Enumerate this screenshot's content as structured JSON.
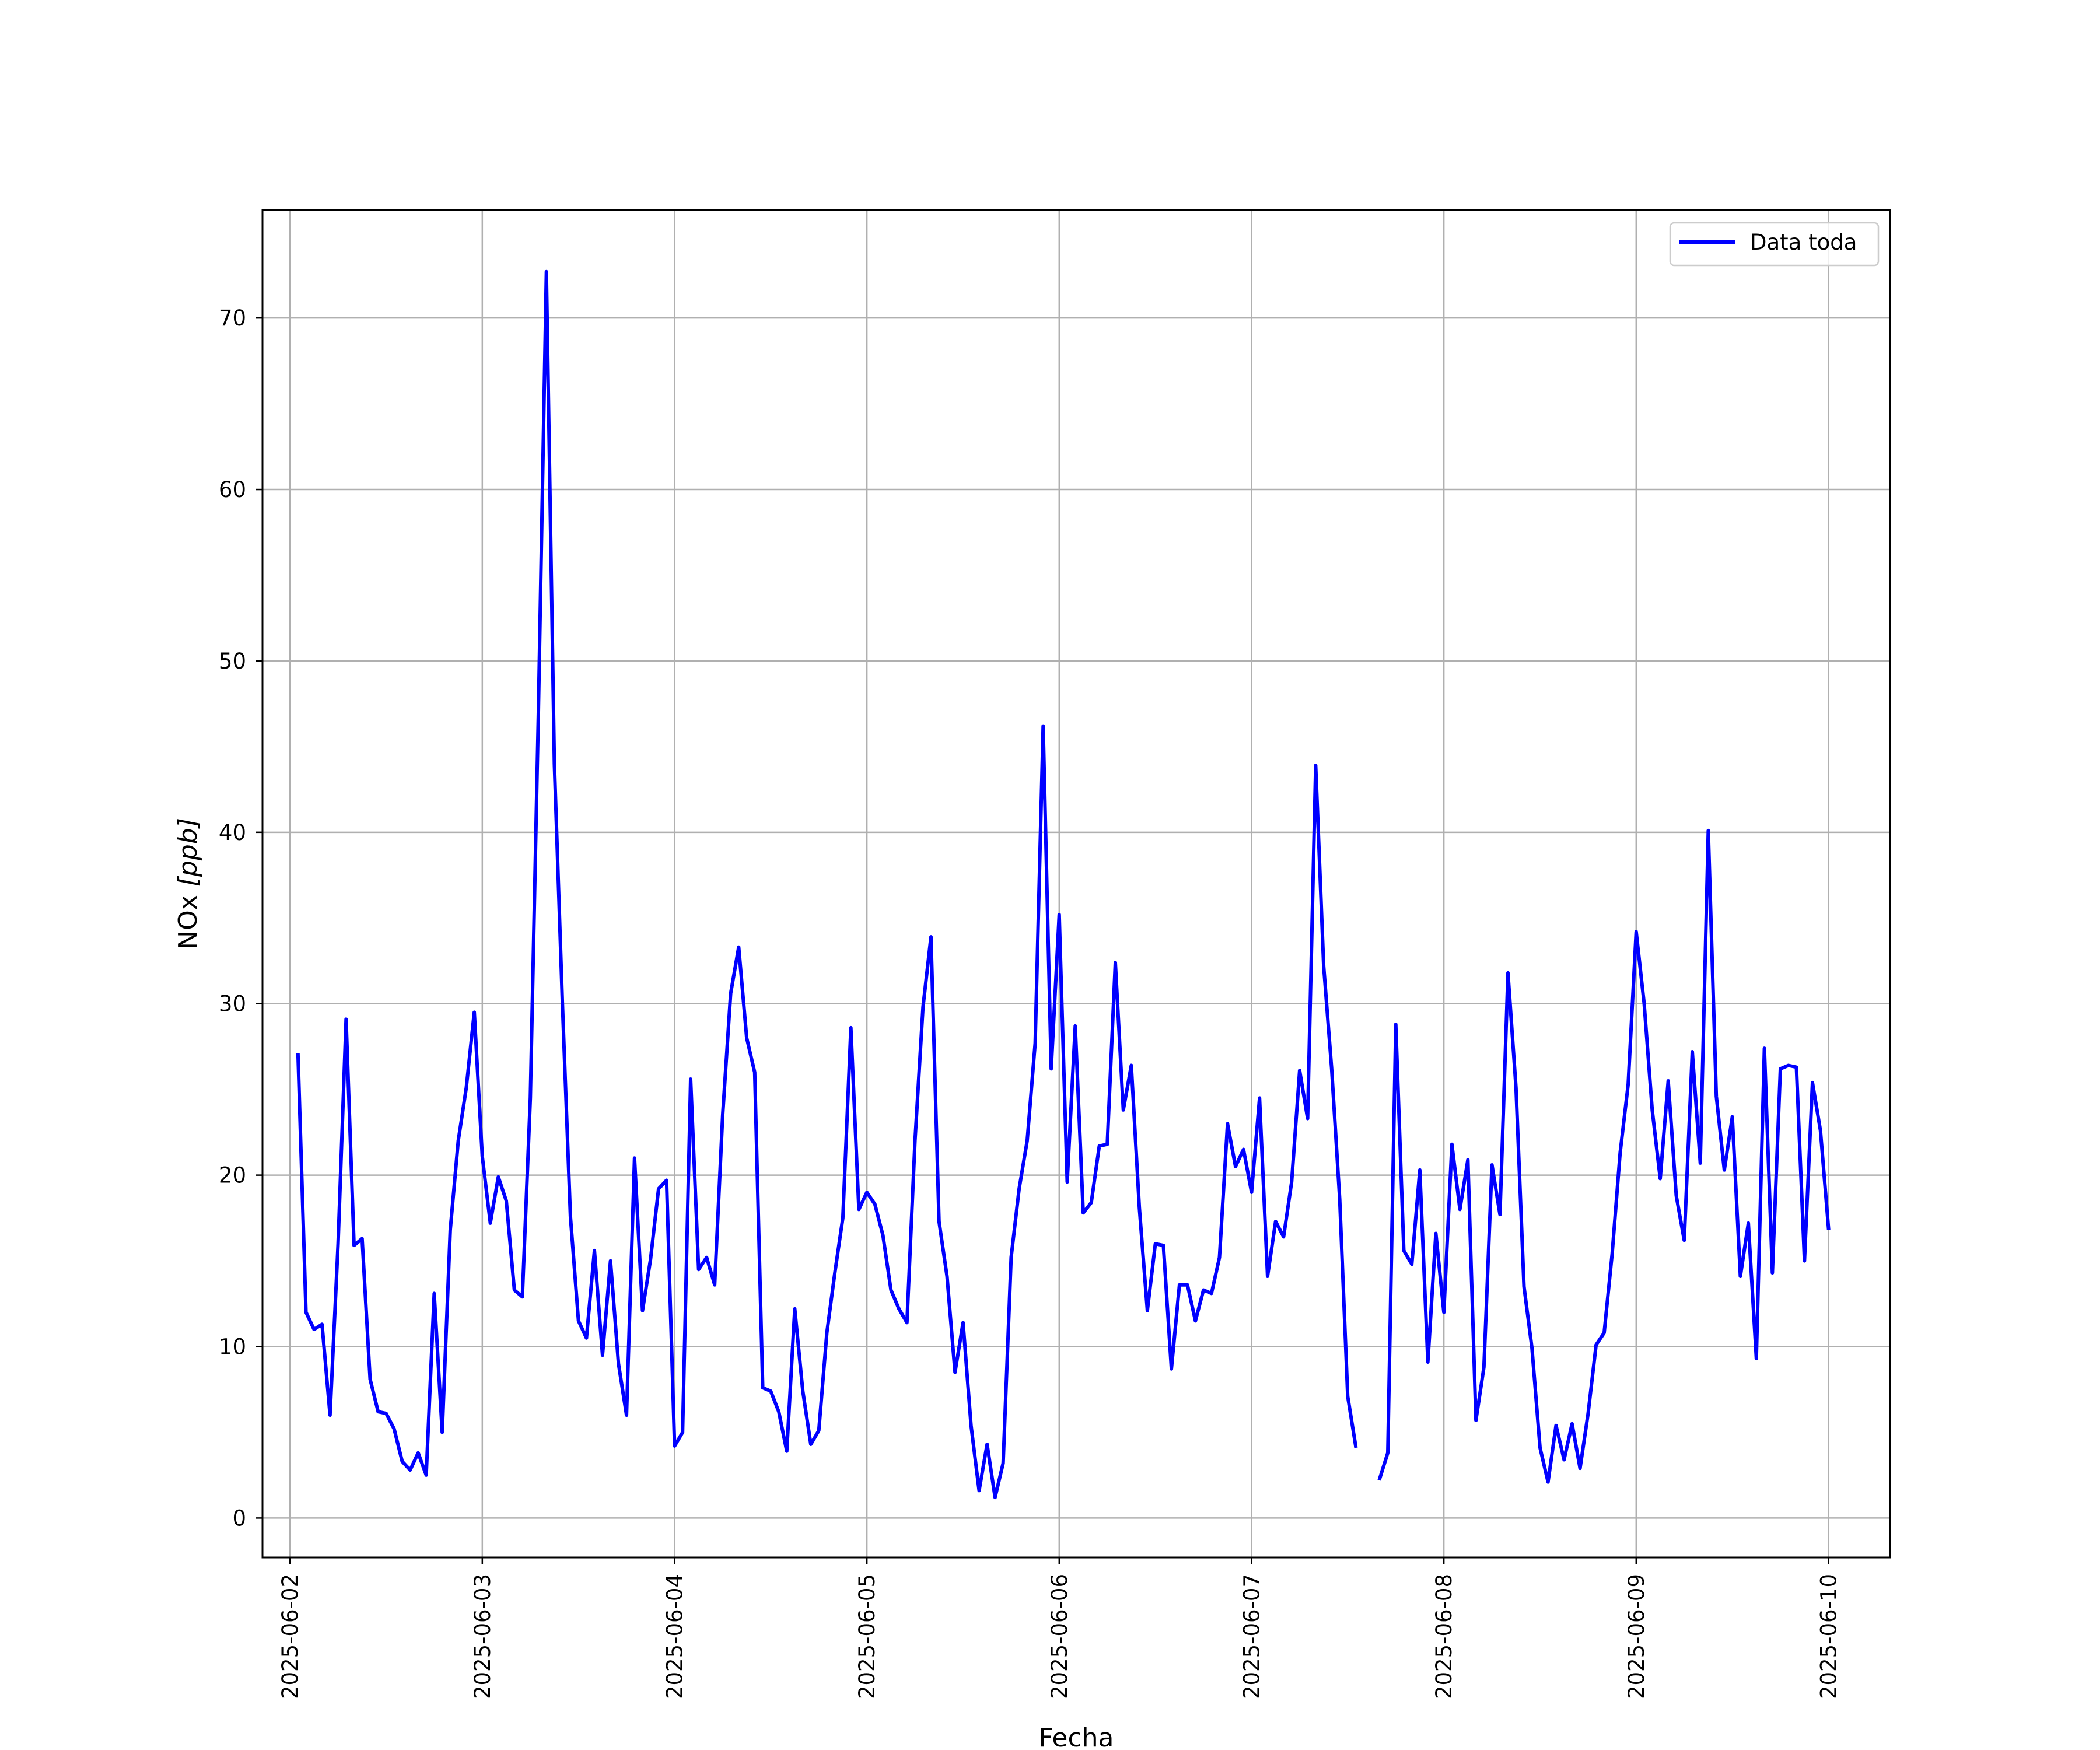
{
  "chart_data": {
    "type": "line",
    "title": "",
    "xlabel": "Fecha",
    "ylabel": "NOx [ppb]",
    "ylabel_parts": {
      "main": "NOx ",
      "italic": "[ppb]"
    },
    "xlim": [
      "2025-06-01T20:34",
      "2025-06-10T07:41"
    ],
    "ylim": [
      -2.3,
      76.3
    ],
    "grid": true,
    "legend_position": "top-right",
    "x_ticks": [
      "2025-06-02",
      "2025-06-03",
      "2025-06-04",
      "2025-06-05",
      "2025-06-06",
      "2025-06-07",
      "2025-06-08",
      "2025-06-09",
      "2025-06-10"
    ],
    "y_ticks": [
      "0",
      "10",
      "20",
      "30",
      "40",
      "50",
      "60",
      "70"
    ],
    "series": [
      {
        "name": "Data toda",
        "color": "#0000ff",
        "points": [
          [
            "2025-06-02T01:00",
            27.0
          ],
          [
            "2025-06-02T02:00",
            12.0
          ],
          [
            "2025-06-02T03:00",
            11.0
          ],
          [
            "2025-06-02T04:00",
            11.3
          ],
          [
            "2025-06-02T05:00",
            6.0
          ],
          [
            "2025-06-02T06:00",
            16.0
          ],
          [
            "2025-06-02T07:00",
            29.1
          ],
          [
            "2025-06-02T08:00",
            15.9
          ],
          [
            "2025-06-02T09:00",
            16.3
          ],
          [
            "2025-06-02T10:00",
            8.1
          ],
          [
            "2025-06-02T11:00",
            6.2
          ],
          [
            "2025-06-02T12:00",
            6.1
          ],
          [
            "2025-06-02T13:00",
            5.2
          ],
          [
            "2025-06-02T14:00",
            3.3
          ],
          [
            "2025-06-02T15:00",
            2.8
          ],
          [
            "2025-06-02T16:00",
            3.8
          ],
          [
            "2025-06-02T17:00",
            2.5
          ],
          [
            "2025-06-02T18:00",
            13.1
          ],
          [
            "2025-06-02T19:00",
            5.0
          ],
          [
            "2025-06-02T20:00",
            16.8
          ],
          [
            "2025-06-02T21:00",
            22.0
          ],
          [
            "2025-06-02T22:00",
            25.1
          ],
          [
            "2025-06-02T23:00",
            29.5
          ],
          [
            "2025-06-03T00:00",
            21.1
          ],
          [
            "2025-06-03T01:00",
            17.2
          ],
          [
            "2025-06-03T02:00",
            19.9
          ],
          [
            "2025-06-03T03:00",
            18.5
          ],
          [
            "2025-06-03T04:00",
            13.3
          ],
          [
            "2025-06-03T05:00",
            12.9
          ],
          [
            "2025-06-03T06:00",
            24.5
          ],
          [
            "2025-06-03T07:00",
            47.0
          ],
          [
            "2025-06-03T08:00",
            72.7
          ],
          [
            "2025-06-03T09:00",
            44.0
          ],
          [
            "2025-06-03T10:00",
            30.0
          ],
          [
            "2025-06-03T11:00",
            17.6
          ],
          [
            "2025-06-03T12:00",
            11.5
          ],
          [
            "2025-06-03T13:00",
            10.5
          ],
          [
            "2025-06-03T14:00",
            15.6
          ],
          [
            "2025-06-03T15:00",
            9.5
          ],
          [
            "2025-06-03T16:00",
            15.0
          ],
          [
            "2025-06-03T17:00",
            9.0
          ],
          [
            "2025-06-03T18:00",
            6.0
          ],
          [
            "2025-06-03T19:00",
            21.0
          ],
          [
            "2025-06-03T20:00",
            12.1
          ],
          [
            "2025-06-03T21:00",
            15.1
          ],
          [
            "2025-06-03T22:00",
            19.2
          ],
          [
            "2025-06-03T23:00",
            19.7
          ],
          [
            "2025-06-04T00:00",
            4.2
          ],
          [
            "2025-06-04T01:00",
            5.0
          ],
          [
            "2025-06-04T02:00",
            25.6
          ],
          [
            "2025-06-04T03:00",
            14.5
          ],
          [
            "2025-06-04T04:00",
            15.2
          ],
          [
            "2025-06-04T05:00",
            13.6
          ],
          [
            "2025-06-04T06:00",
            23.5
          ],
          [
            "2025-06-04T07:00",
            30.6
          ],
          [
            "2025-06-04T08:00",
            33.3
          ],
          [
            "2025-06-04T09:00",
            28.0
          ],
          [
            "2025-06-04T10:00",
            26.0
          ],
          [
            "2025-06-04T11:00",
            7.6
          ],
          [
            "2025-06-04T12:00",
            7.4
          ],
          [
            "2025-06-04T13:00",
            6.2
          ],
          [
            "2025-06-04T14:00",
            3.9
          ],
          [
            "2025-06-04T15:00",
            12.2
          ],
          [
            "2025-06-04T16:00",
            7.4
          ],
          [
            "2025-06-04T17:00",
            4.3
          ],
          [
            "2025-06-04T18:00",
            5.1
          ],
          [
            "2025-06-04T19:00",
            10.8
          ],
          [
            "2025-06-04T20:00",
            14.3
          ],
          [
            "2025-06-04T21:00",
            17.5
          ],
          [
            "2025-06-04T22:00",
            28.6
          ],
          [
            "2025-06-04T23:00",
            18.0
          ],
          [
            "2025-06-05T00:00",
            19.0
          ],
          [
            "2025-06-05T01:00",
            18.3
          ],
          [
            "2025-06-05T02:00",
            16.5
          ],
          [
            "2025-06-05T03:00",
            13.3
          ],
          [
            "2025-06-05T04:00",
            12.2
          ],
          [
            "2025-06-05T05:00",
            11.4
          ],
          [
            "2025-06-05T06:00",
            22.0
          ],
          [
            "2025-06-05T07:00",
            29.8
          ],
          [
            "2025-06-05T08:00",
            33.9
          ],
          [
            "2025-06-05T09:00",
            17.3
          ],
          [
            "2025-06-05T10:00",
            14.1
          ],
          [
            "2025-06-05T11:00",
            8.5
          ],
          [
            "2025-06-05T12:00",
            11.4
          ],
          [
            "2025-06-05T13:00",
            5.4
          ],
          [
            "2025-06-05T14:00",
            1.6
          ],
          [
            "2025-06-05T15:00",
            4.3
          ],
          [
            "2025-06-05T16:00",
            1.2
          ],
          [
            "2025-06-05T17:00",
            3.2
          ],
          [
            "2025-06-05T18:00",
            15.2
          ],
          [
            "2025-06-05T19:00",
            19.2
          ],
          [
            "2025-06-05T20:00",
            22.0
          ],
          [
            "2025-06-05T21:00",
            27.7
          ],
          [
            "2025-06-05T22:00",
            46.2
          ],
          [
            "2025-06-05T23:00",
            26.2
          ],
          [
            "2025-06-06T00:00",
            35.2
          ],
          [
            "2025-06-06T01:00",
            19.6
          ],
          [
            "2025-06-06T02:00",
            28.7
          ],
          [
            "2025-06-06T03:00",
            17.8
          ],
          [
            "2025-06-06T04:00",
            18.4
          ],
          [
            "2025-06-06T05:00",
            21.7
          ],
          [
            "2025-06-06T06:00",
            21.8
          ],
          [
            "2025-06-06T07:00",
            32.4
          ],
          [
            "2025-06-06T08:00",
            23.8
          ],
          [
            "2025-06-06T09:00",
            26.4
          ],
          [
            "2025-06-06T10:00",
            18.1
          ],
          [
            "2025-06-06T11:00",
            12.1
          ],
          [
            "2025-06-06T12:00",
            16.0
          ],
          [
            "2025-06-06T13:00",
            15.9
          ],
          [
            "2025-06-06T14:00",
            8.7
          ],
          [
            "2025-06-06T15:00",
            13.6
          ],
          [
            "2025-06-06T16:00",
            13.6
          ],
          [
            "2025-06-06T17:00",
            11.5
          ],
          [
            "2025-06-06T18:00",
            13.3
          ],
          [
            "2025-06-06T19:00",
            13.1
          ],
          [
            "2025-06-06T20:00",
            15.2
          ],
          [
            "2025-06-06T21:00",
            23.0
          ],
          [
            "2025-06-06T22:00",
            20.5
          ],
          [
            "2025-06-06T23:00",
            21.5
          ],
          [
            "2025-06-07T00:00",
            19.0
          ],
          [
            "2025-06-07T01:00",
            24.5
          ],
          [
            "2025-06-07T02:00",
            14.1
          ],
          [
            "2025-06-07T03:00",
            17.3
          ],
          [
            "2025-06-07T04:00",
            16.4
          ],
          [
            "2025-06-07T05:00",
            19.6
          ],
          [
            "2025-06-07T06:00",
            26.1
          ],
          [
            "2025-06-07T07:00",
            23.3
          ],
          [
            "2025-06-07T08:00",
            43.9
          ],
          [
            "2025-06-07T09:00",
            32.2
          ],
          [
            "2025-06-07T10:00",
            26.2
          ],
          [
            "2025-06-07T11:00",
            18.6
          ],
          [
            "2025-06-07T12:00",
            7.1
          ],
          [
            "2025-06-07T13:00",
            4.2
          ],
          null,
          [
            "2025-06-07T16:00",
            2.3
          ],
          [
            "2025-06-07T17:00",
            3.8
          ],
          [
            "2025-06-07T18:00",
            28.8
          ],
          [
            "2025-06-07T19:00",
            15.6
          ],
          [
            "2025-06-07T20:00",
            14.8
          ],
          [
            "2025-06-07T21:00",
            20.3
          ],
          [
            "2025-06-07T22:00",
            9.1
          ],
          [
            "2025-06-07T23:00",
            16.6
          ],
          [
            "2025-06-08T00:00",
            12.0
          ],
          [
            "2025-06-08T01:00",
            21.8
          ],
          [
            "2025-06-08T02:00",
            18.0
          ],
          [
            "2025-06-08T03:00",
            20.9
          ],
          [
            "2025-06-08T04:00",
            5.7
          ],
          [
            "2025-06-08T05:00",
            8.8
          ],
          [
            "2025-06-08T06:00",
            20.6
          ],
          [
            "2025-06-08T07:00",
            17.7
          ],
          [
            "2025-06-08T08:00",
            31.8
          ],
          [
            "2025-06-08T09:00",
            25.1
          ],
          [
            "2025-06-08T10:00",
            13.5
          ],
          [
            "2025-06-08T11:00",
            9.9
          ],
          [
            "2025-06-08T12:00",
            4.1
          ],
          [
            "2025-06-08T13:00",
            2.1
          ],
          [
            "2025-06-08T14:00",
            5.4
          ],
          [
            "2025-06-08T15:00",
            3.4
          ],
          [
            "2025-06-08T16:00",
            5.5
          ],
          [
            "2025-06-08T17:00",
            2.9
          ],
          [
            "2025-06-08T18:00",
            6.1
          ],
          [
            "2025-06-08T19:00",
            10.1
          ],
          [
            "2025-06-08T20:00",
            10.8
          ],
          [
            "2025-06-08T21:00",
            15.4
          ],
          [
            "2025-06-08T22:00",
            21.3
          ],
          [
            "2025-06-08T23:00",
            25.3
          ],
          [
            "2025-06-09T00:00",
            34.2
          ],
          [
            "2025-06-09T01:00",
            30.0
          ],
          [
            "2025-06-09T02:00",
            23.8
          ],
          [
            "2025-06-09T03:00",
            19.8
          ],
          [
            "2025-06-09T04:00",
            25.5
          ],
          [
            "2025-06-09T05:00",
            18.8
          ],
          [
            "2025-06-09T06:00",
            16.2
          ],
          [
            "2025-06-09T07:00",
            27.2
          ],
          [
            "2025-06-09T08:00",
            20.7
          ],
          [
            "2025-06-09T09:00",
            40.1
          ],
          [
            "2025-06-09T10:00",
            24.6
          ],
          [
            "2025-06-09T11:00",
            20.3
          ],
          [
            "2025-06-09T12:00",
            23.4
          ],
          [
            "2025-06-09T13:00",
            14.1
          ],
          [
            "2025-06-09T14:00",
            17.2
          ],
          [
            "2025-06-09T15:00",
            9.3
          ],
          [
            "2025-06-09T16:00",
            27.4
          ],
          [
            "2025-06-09T17:00",
            14.3
          ],
          [
            "2025-06-09T18:00",
            26.2
          ],
          [
            "2025-06-09T19:00",
            26.4
          ],
          [
            "2025-06-09T20:00",
            26.3
          ],
          [
            "2025-06-09T21:00",
            15.0
          ],
          [
            "2025-06-09T22:00",
            25.4
          ],
          [
            "2025-06-09T23:00",
            22.6
          ],
          [
            "2025-06-10T00:00",
            16.9
          ]
        ]
      }
    ]
  },
  "colors": {
    "line": "#0000ff",
    "grid": "#b0b0b0",
    "frame": "#000000",
    "background": "#ffffff"
  }
}
